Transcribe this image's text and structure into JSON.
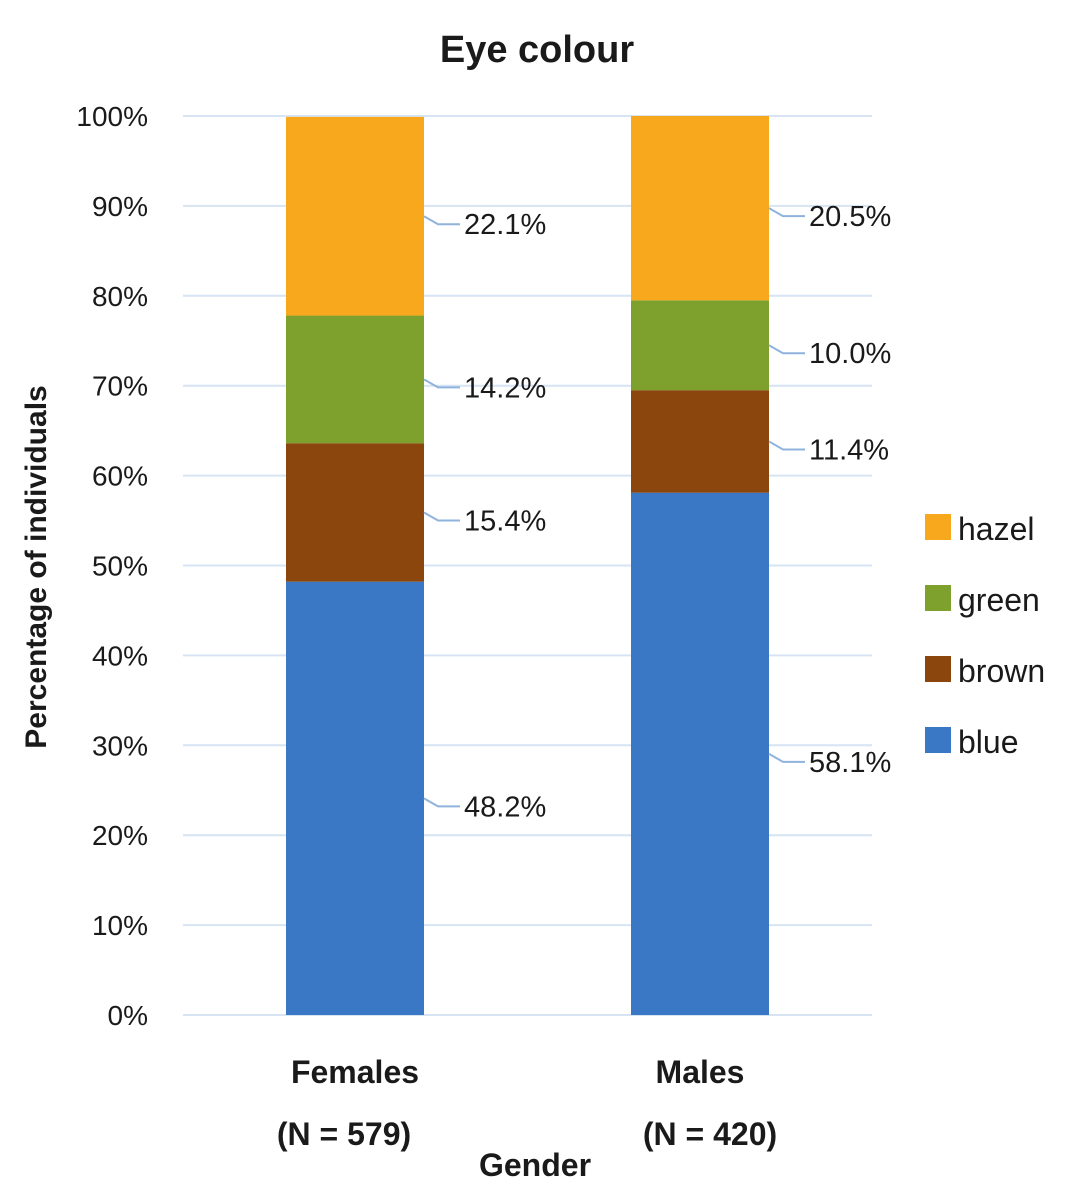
{
  "chart_data": {
    "type": "bar",
    "stacked": true,
    "title": "Eye colour",
    "xlabel": "Gender",
    "ylabel": "Percentage of individuals",
    "ylim": [
      0,
      100
    ],
    "y_ticks": [
      "0%",
      "10%",
      "20%",
      "30%",
      "40%",
      "50%",
      "60%",
      "70%",
      "80%",
      "90%",
      "100%"
    ],
    "grid": true,
    "legend_position": "right",
    "categories": [
      {
        "name": "Females",
        "n_label": "(N = 579)"
      },
      {
        "name": "Males",
        "n_label": "(N = 420)"
      }
    ],
    "series": [
      {
        "name": "blue",
        "color": "#3a78c6",
        "values": [
          48.2,
          58.1
        ],
        "labels": [
          "48.2%",
          "58.1%"
        ]
      },
      {
        "name": "brown",
        "color": "#8a460c",
        "values": [
          15.4,
          11.4
        ],
        "labels": [
          "15.4%",
          "11.4%"
        ]
      },
      {
        "name": "green",
        "color": "#7ea02c",
        "values": [
          14.2,
          10.0
        ],
        "labels": [
          "14.2%",
          "10.0%"
        ]
      },
      {
        "name": "hazel",
        "color": "#f7a81c",
        "values": [
          22.1,
          20.5
        ],
        "labels": [
          "22.1%",
          "20.5%"
        ]
      }
    ],
    "legend_order": [
      "hazel",
      "green",
      "brown",
      "blue"
    ]
  }
}
